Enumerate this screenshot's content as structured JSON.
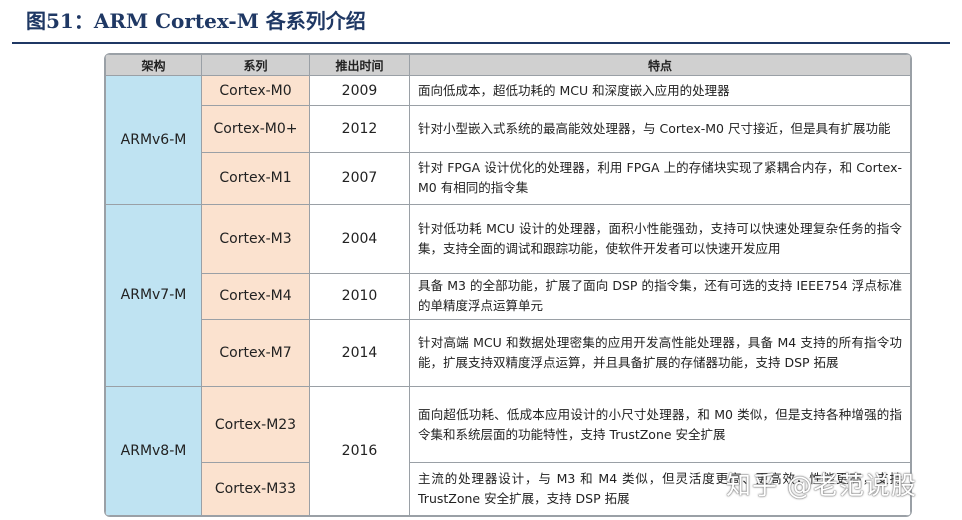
{
  "figure": {
    "title": "图51：ARM Cortex-M 各系列介绍"
  },
  "table": {
    "headers": [
      "架构",
      "系列",
      "推出时间",
      "特点"
    ],
    "groups": [
      {
        "arch": "ARMv6-M",
        "rows": [
          {
            "series": "Cortex-M0",
            "year": "2009",
            "feature": "面向低成本，超低功耗的 MCU 和深度嵌入应用的处理器"
          },
          {
            "series": "Cortex-M0+",
            "year": "2012",
            "feature": "针对小型嵌入式系统的最高能效处理器，与 Cortex-M0 尺寸接近，但是具有扩展功能"
          },
          {
            "series": "Cortex-M1",
            "year": "2007",
            "feature": "针对 FPGA 设计优化的处理器，利用 FPGA 上的存储块实现了紧耦合内存，和 Cortex-M0 有相同的指令集"
          }
        ]
      },
      {
        "arch": "ARMv7-M",
        "rows": [
          {
            "series": "Cortex-M3",
            "year": "2004",
            "feature": "针对低功耗 MCU 设计的处理器，面积小性能强劲，支持可以快速处理复杂任务的指令集，支持全面的调试和跟踪功能，使软件开发者可以快速开发应用"
          },
          {
            "series": "Cortex-M4",
            "year": "2010",
            "feature": "具备 M3 的全部功能，扩展了面向 DSP 的指令集，还有可选的支持 IEEE754 浮点标准的单精度浮点运算单元"
          },
          {
            "series": "Cortex-M7",
            "year": "2014",
            "feature": "针对高端 MCU 和数据处理密集的应用开发高性能处理器，具备 M4 支持的所有指令功能，扩展支持双精度浮点运算，并且具备扩展的存储器功能，支持 DSP 拓展"
          }
        ]
      },
      {
        "arch": "ARMv8-M",
        "year": "2016",
        "rows": [
          {
            "series": "Cortex-M23",
            "feature": "面向超低功耗、低成本应用设计的小尺寸处理器，和 M0 类似，但是支持各种增强的指令集和系统层面的功能特性，支持 TrustZone 安全扩展"
          },
          {
            "series": "Cortex-M33",
            "feature": "主流的处理器设计，与 M3 和 M4 类似，但灵活度更高、更高效，性能更高，支持 TrustZone 安全扩展，支持 DSP 拓展"
          }
        ]
      }
    ]
  },
  "watermark": {
    "text": "知乎 @老范说股"
  }
}
